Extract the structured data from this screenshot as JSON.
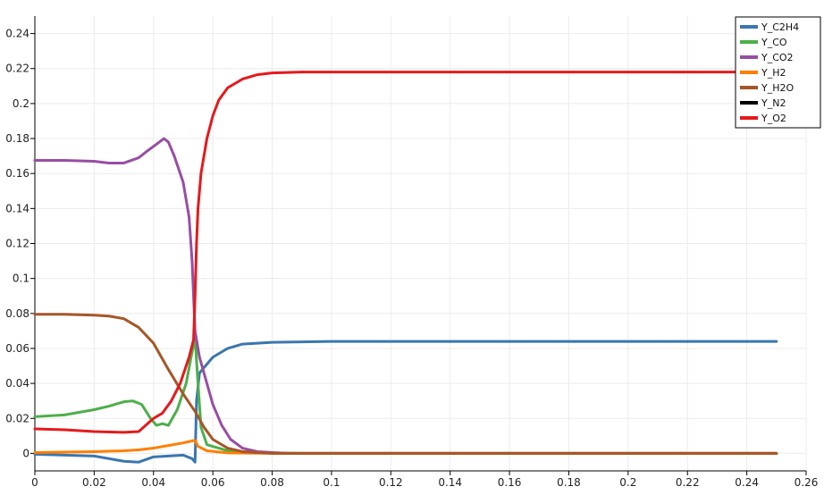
{
  "chart_data": {
    "type": "line",
    "title": "",
    "xlabel": "",
    "ylabel": "",
    "xlim": [
      0,
      0.26
    ],
    "ylim": [
      -0.01,
      0.25
    ],
    "grid": true,
    "legend_position": "top-right",
    "x_ticks": [
      0,
      0.02,
      0.04,
      0.06,
      0.08,
      0.1,
      0.12,
      0.14,
      0.16,
      0.18,
      0.2,
      0.22,
      0.24,
      0.26
    ],
    "x_tick_labels": [
      "0",
      "0.02",
      "0.04",
      "0.06",
      "0.08",
      "0.1",
      "0.12",
      "0.14",
      "0.16",
      "0.18",
      "0.2",
      "0.22",
      "0.24",
      "0.26"
    ],
    "y_ticks": [
      0,
      0.02,
      0.04,
      0.06,
      0.08,
      0.1,
      0.12,
      0.14,
      0.16,
      0.18,
      0.2,
      0.22,
      0.24
    ],
    "y_tick_labels": [
      "0",
      "0.02",
      "0.04",
      "0.06",
      "0.08",
      "0.1",
      "0.12",
      "0.14",
      "0.16",
      "0.18",
      "0.2",
      "0.22",
      "0.24"
    ],
    "series": [
      {
        "name": "Y_C2H4",
        "color": "#3b76af",
        "points": [
          [
            0,
            -0.0005
          ],
          [
            0.01,
            -0.001
          ],
          [
            0.02,
            -0.0015
          ],
          [
            0.03,
            -0.0045
          ],
          [
            0.035,
            -0.005
          ],
          [
            0.04,
            -0.002
          ],
          [
            0.045,
            -0.0015
          ],
          [
            0.05,
            -0.001
          ],
          [
            0.053,
            -0.003
          ],
          [
            0.054,
            -0.005
          ],
          [
            0.0545,
            0.03
          ],
          [
            0.0555,
            0.046
          ],
          [
            0.06,
            0.055
          ],
          [
            0.065,
            0.06
          ],
          [
            0.07,
            0.0625
          ],
          [
            0.08,
            0.0635
          ],
          [
            0.1,
            0.064
          ],
          [
            0.25,
            0.064
          ]
        ]
      },
      {
        "name": "Y_CO",
        "color": "#4daf4a",
        "points": [
          [
            0,
            0.021
          ],
          [
            0.01,
            0.022
          ],
          [
            0.02,
            0.025
          ],
          [
            0.025,
            0.027
          ],
          [
            0.03,
            0.0295
          ],
          [
            0.033,
            0.03
          ],
          [
            0.036,
            0.028
          ],
          [
            0.039,
            0.02
          ],
          [
            0.041,
            0.016
          ],
          [
            0.043,
            0.017
          ],
          [
            0.045,
            0.016
          ],
          [
            0.048,
            0.025
          ],
          [
            0.051,
            0.04
          ],
          [
            0.053,
            0.058
          ],
          [
            0.054,
            0.066
          ],
          [
            0.055,
            0.04
          ],
          [
            0.056,
            0.015
          ],
          [
            0.058,
            0.005
          ],
          [
            0.065,
            0.0015
          ],
          [
            0.075,
            0.0005
          ],
          [
            0.09,
            0
          ],
          [
            0.25,
            0
          ]
        ]
      },
      {
        "name": "Y_CO2",
        "color": "#984ea3",
        "points": [
          [
            0,
            0.1675
          ],
          [
            0.01,
            0.1675
          ],
          [
            0.02,
            0.167
          ],
          [
            0.025,
            0.166
          ],
          [
            0.03,
            0.166
          ],
          [
            0.035,
            0.169
          ],
          [
            0.038,
            0.173
          ],
          [
            0.042,
            0.178
          ],
          [
            0.0435,
            0.18
          ],
          [
            0.045,
            0.178
          ],
          [
            0.047,
            0.17
          ],
          [
            0.05,
            0.155
          ],
          [
            0.052,
            0.135
          ],
          [
            0.053,
            0.11
          ],
          [
            0.054,
            0.07
          ],
          [
            0.0555,
            0.055
          ],
          [
            0.058,
            0.04
          ],
          [
            0.06,
            0.028
          ],
          [
            0.063,
            0.016
          ],
          [
            0.066,
            0.008
          ],
          [
            0.07,
            0.003
          ],
          [
            0.075,
            0.001
          ],
          [
            0.085,
            0
          ],
          [
            0.25,
            0
          ]
        ]
      },
      {
        "name": "Y_H2",
        "color": "#ff7f00",
        "points": [
          [
            0,
            0.0005
          ],
          [
            0.01,
            0.0007
          ],
          [
            0.02,
            0.001
          ],
          [
            0.03,
            0.0015
          ],
          [
            0.035,
            0.002
          ],
          [
            0.04,
            0.003
          ],
          [
            0.045,
            0.0045
          ],
          [
            0.05,
            0.006
          ],
          [
            0.054,
            0.0075
          ],
          [
            0.055,
            0.004
          ],
          [
            0.058,
            0.0015
          ],
          [
            0.065,
            0.0003
          ],
          [
            0.08,
            0
          ],
          [
            0.25,
            0
          ]
        ]
      },
      {
        "name": "Y_H2O",
        "color": "#a65628",
        "points": [
          [
            0,
            0.0795
          ],
          [
            0.01,
            0.0795
          ],
          [
            0.02,
            0.079
          ],
          [
            0.025,
            0.0785
          ],
          [
            0.03,
            0.077
          ],
          [
            0.035,
            0.072
          ],
          [
            0.04,
            0.063
          ],
          [
            0.045,
            0.048
          ],
          [
            0.05,
            0.034
          ],
          [
            0.054,
            0.024
          ],
          [
            0.057,
            0.015
          ],
          [
            0.06,
            0.008
          ],
          [
            0.065,
            0.003
          ],
          [
            0.07,
            0.001
          ],
          [
            0.08,
            0
          ],
          [
            0.25,
            0
          ]
        ]
      },
      {
        "name": "Y_N2",
        "color": "#000000",
        "points": []
      },
      {
        "name": "Y_O2",
        "color": "#e41a1c",
        "points": [
          [
            0,
            0.014
          ],
          [
            0.01,
            0.0135
          ],
          [
            0.02,
            0.0125
          ],
          [
            0.03,
            0.012
          ],
          [
            0.035,
            0.0125
          ],
          [
            0.04,
            0.02
          ],
          [
            0.043,
            0.023
          ],
          [
            0.046,
            0.03
          ],
          [
            0.049,
            0.04
          ],
          [
            0.052,
            0.055
          ],
          [
            0.0535,
            0.065
          ],
          [
            0.054,
            0.09
          ],
          [
            0.0545,
            0.12
          ],
          [
            0.055,
            0.14
          ],
          [
            0.056,
            0.16
          ],
          [
            0.058,
            0.18
          ],
          [
            0.06,
            0.193
          ],
          [
            0.062,
            0.202
          ],
          [
            0.065,
            0.209
          ],
          [
            0.07,
            0.214
          ],
          [
            0.075,
            0.2165
          ],
          [
            0.08,
            0.2175
          ],
          [
            0.09,
            0.218
          ],
          [
            0.25,
            0.218
          ]
        ]
      }
    ]
  }
}
